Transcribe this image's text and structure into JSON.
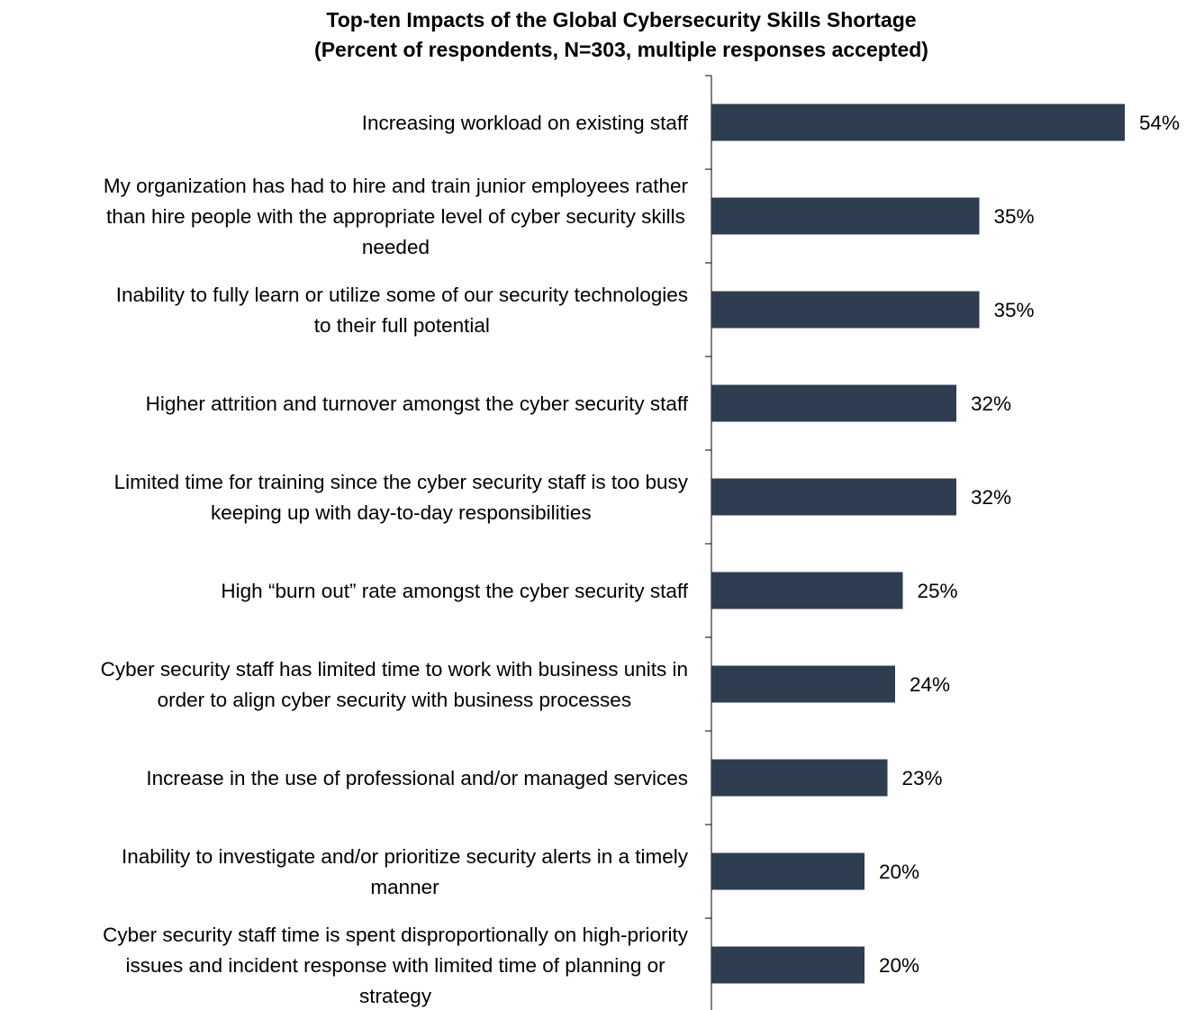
{
  "chart_data": {
    "type": "bar",
    "orientation": "horizontal",
    "title_lines": [
      "Top-ten Impacts of the Global Cybersecurity Skills Shortage",
      "(Percent of respondents, N=303, multiple responses accepted)"
    ],
    "categories": [
      [
        "Increasing workload on existing staff"
      ],
      [
        "My organization has had to hire and train junior employees rather",
        "than hire people with the appropriate level of cyber security skills",
        "needed"
      ],
      [
        "Inability to fully learn or utilize some of our security technologies",
        "to their full potential"
      ],
      [
        "Higher attrition and turnover amongst the cyber security staff"
      ],
      [
        "Limited time for training since the cyber security staff is too busy",
        "keeping up with day-to-day responsibilities"
      ],
      [
        "High “burn out” rate amongst the cyber security staff"
      ],
      [
        "Cyber security staff has limited time to work with business units in",
        "order to align cyber security with business processes"
      ],
      [
        "Increase in the use of professional and/or managed services"
      ],
      [
        "Inability to investigate and/or prioritize security alerts in a timely",
        "manner"
      ],
      [
        "Cyber security staff time is spent disproportionally on high-priority",
        "issues and incident response with limited time of planning or",
        "strategy"
      ]
    ],
    "values": [
      54,
      35,
      35,
      32,
      32,
      25,
      24,
      23,
      20,
      20
    ],
    "value_labels": [
      "54%",
      "35%",
      "35%",
      "32%",
      "32%",
      "25%",
      "24%",
      "23%",
      "20%",
      "20%"
    ],
    "xlim": [
      0,
      60
    ],
    "bar_color": "#2e3d50",
    "grid": false,
    "legend": "none"
  }
}
